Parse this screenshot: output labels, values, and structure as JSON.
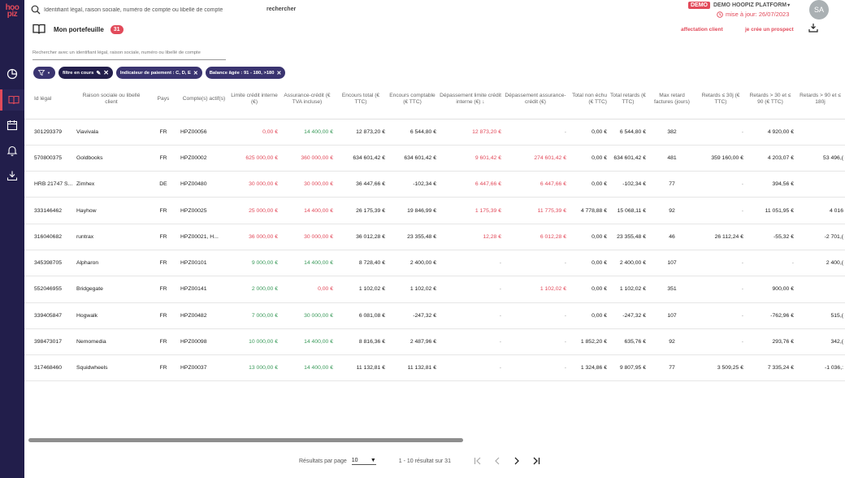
{
  "app": {
    "logo_text": "hoo piz"
  },
  "colors": {
    "accent": "#e24a5a",
    "sidebar": "#221e4b",
    "positive": "#3a9a5a"
  },
  "sidebar": {
    "items": [
      {
        "icon": "chart-pie-icon",
        "active": false
      },
      {
        "icon": "book-icon",
        "active": true
      },
      {
        "icon": "calendar-icon",
        "active": false
      },
      {
        "icon": "bell-icon",
        "active": false
      },
      {
        "icon": "download-icon",
        "active": false
      }
    ]
  },
  "header": {
    "search_placeholder": "Identifiant légal, raison sociale, numéro de compte ou libellé de compte",
    "search_button": "rechercher",
    "demo_badge": "DEMO",
    "platform": "DEMO HOOPIZ PLATFORM",
    "update_text": "mise à jour: 26/07/2023",
    "avatar": "SA"
  },
  "portfolio": {
    "title": "Mon portefeuille",
    "count": "31",
    "search_placeholder": "Rechercher avec un identifiant légal, raison sociale, numéro ou libellé de compte",
    "action_affect": "affectation client",
    "action_prospect": "je crée un prospect"
  },
  "filters": {
    "filter_icon_label": "▼",
    "chips": [
      {
        "label": "filtre en cours"
      },
      {
        "label": "Indicateur de paiement : C, D, E"
      },
      {
        "label": "Balance âgée : 91 - 180, >180"
      }
    ]
  },
  "table": {
    "headers": [
      "Id légal",
      "Raison sociale ou libellé client",
      "Pays",
      "Compte(s) actif(s)",
      "Limite crédit interne (€)",
      "Assurance-crédit (€ TVA incluse)",
      "Encours total (€ TTC)",
      "Encours comptable (€ TTC)",
      "Dépassement limite crédit interne (€)",
      "Dépassement assurance-crédit (€)",
      "Total non échu (€ TTC)",
      "Total retards (€ TTC)",
      "Max retard factures (jours)",
      "Retards ≤ 30j (€ TTC)",
      "Retards > 30 et ≤ 90 (€ TTC)",
      "Retards > 90 et ≤ 180j"
    ],
    "rows": [
      {
        "id": "301293379",
        "name": "Viavivala",
        "pays": "FR",
        "compte": "HPZ00056",
        "limite": "0,00 €",
        "assur": "14 400,00 €",
        "encours": "12 873,20 €",
        "compt": "6 544,80 €",
        "dep_lim": "12 873,20 €",
        "dep_ass": "-",
        "non_echu": "0,00 €",
        "retards": "6 544,80 €",
        "max": "382",
        "r30": "-",
        "r90": "4 920,00 €",
        "r180": ""
      },
      {
        "id": "570800375",
        "name": "Goldbooks",
        "pays": "FR",
        "compte": "HPZ00002",
        "limite": "625 000,00 €",
        "assur": "360 000,00 €",
        "encours": "634 601,42 €",
        "compt": "634 601,42 €",
        "dep_lim": "9 601,42 €",
        "dep_ass": "274 601,42 €",
        "non_echu": "0,00 €",
        "retards": "634 601,42 €",
        "max": "481",
        "r30": "359 160,00 €",
        "r90": "4 203,07 €",
        "r180": "53 496,("
      },
      {
        "id": "HRB 21747 S...",
        "name": "Zimhex",
        "pays": "DE",
        "compte": "HPZ00480",
        "limite": "30 000,00 €",
        "assur": "30 000,00 €",
        "encours": "36 447,66 €",
        "compt": "-102,34 €",
        "dep_lim": "6 447,66 €",
        "dep_ass": "6 447,66 €",
        "non_echu": "0,00 €",
        "retards": "-102,34 €",
        "max": "77",
        "r30": "-",
        "r90": "394,56 €",
        "r180": ""
      },
      {
        "id": "333146462",
        "name": "Hayhow",
        "pays": "FR",
        "compte": "HPZ00025",
        "limite": "25 000,00 €",
        "assur": "14 400,00 €",
        "encours": "26 175,39 €",
        "compt": "19 846,99 €",
        "dep_lim": "1 175,39 €",
        "dep_ass": "11 775,39 €",
        "non_echu": "4 778,88 €",
        "retards": "15 068,11 €",
        "max": "92",
        "r30": "-",
        "r90": "11 051,95 €",
        "r180": "4 016"
      },
      {
        "id": "316040682",
        "name": "runtrax",
        "pays": "FR",
        "compte": "HPZ00021, H...",
        "limite": "36 000,00 €",
        "assur": "30 000,00 €",
        "encours": "36 012,28 €",
        "compt": "23 355,48 €",
        "dep_lim": "12,28 €",
        "dep_ass": "6 012,28 €",
        "non_echu": "0,00 €",
        "retards": "23 355,48 €",
        "max": "46",
        "r30": "26 112,24 €",
        "r90": "-55,32 €",
        "r180": "-2 701,("
      },
      {
        "id": "345398705",
        "name": "Alpharon",
        "pays": "FR",
        "compte": "HPZ00101",
        "limite": "9 000,00 €",
        "assur": "14 400,00 €",
        "encours": "8 728,40 €",
        "compt": "2 400,00 €",
        "dep_lim": "-",
        "dep_ass": "-",
        "non_echu": "0,00 €",
        "retards": "2 400,00 €",
        "max": "107",
        "r30": "-",
        "r90": "-",
        "r180": "2 400,("
      },
      {
        "id": "552046955",
        "name": "Bridgegate",
        "pays": "FR",
        "compte": "HPZ00141",
        "limite": "2 000,00 €",
        "assur": "0,00 €",
        "encours": "1 102,02 €",
        "compt": "1 102,02 €",
        "dep_lim": "-",
        "dep_ass": "1 102,02 €",
        "non_echu": "0,00 €",
        "retards": "1 102,02 €",
        "max": "351",
        "r30": "-",
        "r90": "900,00 €",
        "r180": ""
      },
      {
        "id": "339405847",
        "name": "Hogwalk",
        "pays": "FR",
        "compte": "HPZ00482",
        "limite": "7 000,00 €",
        "assur": "30 000,00 €",
        "encours": "6 081,08 €",
        "compt": "-247,32 €",
        "dep_lim": "-",
        "dep_ass": "-",
        "non_echu": "0,00 €",
        "retards": "-247,32 €",
        "max": "107",
        "r30": "-",
        "r90": "-762,96 €",
        "r180": "515,("
      },
      {
        "id": "398473017",
        "name": "Nemomedia",
        "pays": "FR",
        "compte": "HPZ00098",
        "limite": "10 000,00 €",
        "assur": "14 400,00 €",
        "encours": "8 816,36 €",
        "compt": "2 487,96 €",
        "dep_lim": "-",
        "dep_ass": "-",
        "non_echu": "1 852,20 €",
        "retards": "635,76 €",
        "max": "92",
        "r30": "-",
        "r90": "293,76 €",
        "r180": "342,("
      },
      {
        "id": "317468460",
        "name": "Squidwheels",
        "pays": "FR",
        "compte": "HPZ00037",
        "limite": "13 000,00 €",
        "assur": "14 400,00 €",
        "encours": "11 132,81 €",
        "compt": "11 132,81 €",
        "dep_lim": "-",
        "dep_ass": "-",
        "non_echu": "1 324,86 €",
        "retards": "9 807,95 €",
        "max": "77",
        "r30": "3 509,25 €",
        "r90": "7 335,24 €",
        "r180": "-1 036,:"
      }
    ]
  },
  "pagination": {
    "per_page_label": "Résultats par page",
    "per_page_value": "10",
    "range_text": "1 - 10 résultat sur 31"
  }
}
